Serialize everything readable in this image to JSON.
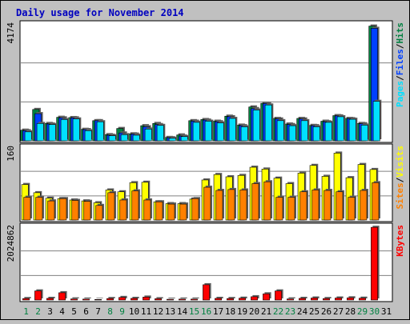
{
  "title": "Daily usage for November 2014",
  "colors": {
    "background": "#C0C0C0",
    "plot_background": "#FFFFFF",
    "frame": "#000000",
    "gridline": "#808080",
    "title": "#0000C0",
    "hits": "#008040",
    "files": "#0040FF",
    "pages": "#00E0FF",
    "visits": "#FFFF00",
    "sites": "#FF8000",
    "kbytes": "#FF0000",
    "day_label": "#000000",
    "weekend_label": "#008040"
  },
  "chart_data": [
    {
      "type": "bar",
      "panel": "hits-files-pages",
      "ymax_label": "4174",
      "ylim": [
        0,
        4174
      ],
      "gridlines": [
        1391,
        2783
      ],
      "legend": [
        "Pages",
        "/",
        "Files",
        "/",
        "Hits"
      ],
      "categories": [
        "1",
        "2",
        "3",
        "4",
        "5",
        "6",
        "7",
        "8",
        "9",
        "10",
        "11",
        "12",
        "13",
        "14",
        "15",
        "16",
        "17",
        "18",
        "19",
        "20",
        "21",
        "22",
        "23",
        "24",
        "25",
        "26",
        "27",
        "28",
        "29",
        "30",
        "31"
      ],
      "series": [
        {
          "name": "Hits",
          "values": [
            380,
            1120,
            620,
            840,
            830,
            410,
            720,
            220,
            440,
            250,
            540,
            620,
            120,
            210,
            720,
            760,
            700,
            880,
            560,
            1210,
            1340,
            800,
            600,
            800,
            550,
            700,
            900,
            800,
            620,
            4100,
            0
          ]
        },
        {
          "name": "Files",
          "values": [
            360,
            970,
            600,
            820,
            820,
            400,
            720,
            200,
            280,
            240,
            500,
            580,
            110,
            170,
            700,
            740,
            680,
            860,
            540,
            1150,
            1330,
            780,
            580,
            780,
            540,
            680,
            890,
            790,
            610,
            4020,
            0
          ]
        },
        {
          "name": "Pages",
          "values": [
            320,
            620,
            580,
            760,
            780,
            360,
            680,
            180,
            220,
            200,
            420,
            550,
            90,
            150,
            660,
            700,
            640,
            800,
            500,
            1100,
            1280,
            720,
            540,
            720,
            500,
            660,
            860,
            770,
            560,
            1410,
            0
          ]
        }
      ]
    },
    {
      "type": "bar",
      "panel": "visits-sites",
      "ymax_label": "160",
      "ylim": [
        0,
        160
      ],
      "gridlines": [
        53,
        107
      ],
      "legend": [
        "Sites",
        "/",
        "Visits"
      ],
      "categories": [
        "1",
        "2",
        "3",
        "4",
        "5",
        "6",
        "7",
        "8",
        "9",
        "10",
        "11",
        "12",
        "13",
        "14",
        "15",
        "16",
        "17",
        "18",
        "19",
        "20",
        "21",
        "22",
        "23",
        "24",
        "25",
        "26",
        "27",
        "28",
        "29",
        "30",
        "31"
      ],
      "series": [
        {
          "name": "Visits",
          "values": [
            78,
            60,
            48,
            47,
            44,
            42,
            38,
            66,
            62,
            82,
            83,
            40,
            36,
            36,
            46,
            88,
            100,
            95,
            98,
            116,
            112,
            92,
            80,
            103,
            120,
            96,
            147,
            93,
            122,
            111,
            0
          ]
        },
        {
          "name": "Sites",
          "values": [
            50,
            50,
            42,
            47,
            43,
            41,
            32,
            60,
            44,
            64,
            44,
            40,
            35,
            35,
            47,
            72,
            65,
            67,
            66,
            80,
            84,
            50,
            50,
            62,
            66,
            65,
            62,
            50,
            65,
            82,
            0
          ]
        }
      ]
    },
    {
      "type": "bar",
      "panel": "kbytes",
      "ymax_label": "2024862",
      "ylim": [
        0,
        2024862
      ],
      "gridlines": [
        675000,
        1350000
      ],
      "legend": [
        "KBytes"
      ],
      "categories": [
        "1",
        "2",
        "3",
        "4",
        "5",
        "6",
        "7",
        "8",
        "9",
        "10",
        "11",
        "12",
        "13",
        "14",
        "15",
        "16",
        "17",
        "18",
        "19",
        "20",
        "21",
        "22",
        "23",
        "24",
        "25",
        "26",
        "27",
        "28",
        "29",
        "30",
        "31"
      ],
      "series": [
        {
          "name": "KBytes",
          "values": [
            40000,
            250000,
            45000,
            200000,
            30000,
            25000,
            15000,
            40000,
            70000,
            45000,
            80000,
            35000,
            20000,
            25000,
            25000,
            420000,
            45000,
            40000,
            50000,
            90000,
            170000,
            250000,
            30000,
            45000,
            55000,
            40000,
            55000,
            60000,
            50000,
            2000000,
            0
          ]
        }
      ]
    }
  ],
  "x_labels": [
    "1",
    "2",
    "3",
    "4",
    "5",
    "6",
    "7",
    "8",
    "9",
    "10",
    "11",
    "12",
    "13",
    "14",
    "15",
    "16",
    "17",
    "18",
    "19",
    "20",
    "21",
    "22",
    "23",
    "24",
    "25",
    "26",
    "27",
    "28",
    "29",
    "30",
    "31"
  ],
  "weekend_days": [
    1,
    2,
    8,
    9,
    15,
    16,
    22,
    23,
    29,
    30
  ]
}
